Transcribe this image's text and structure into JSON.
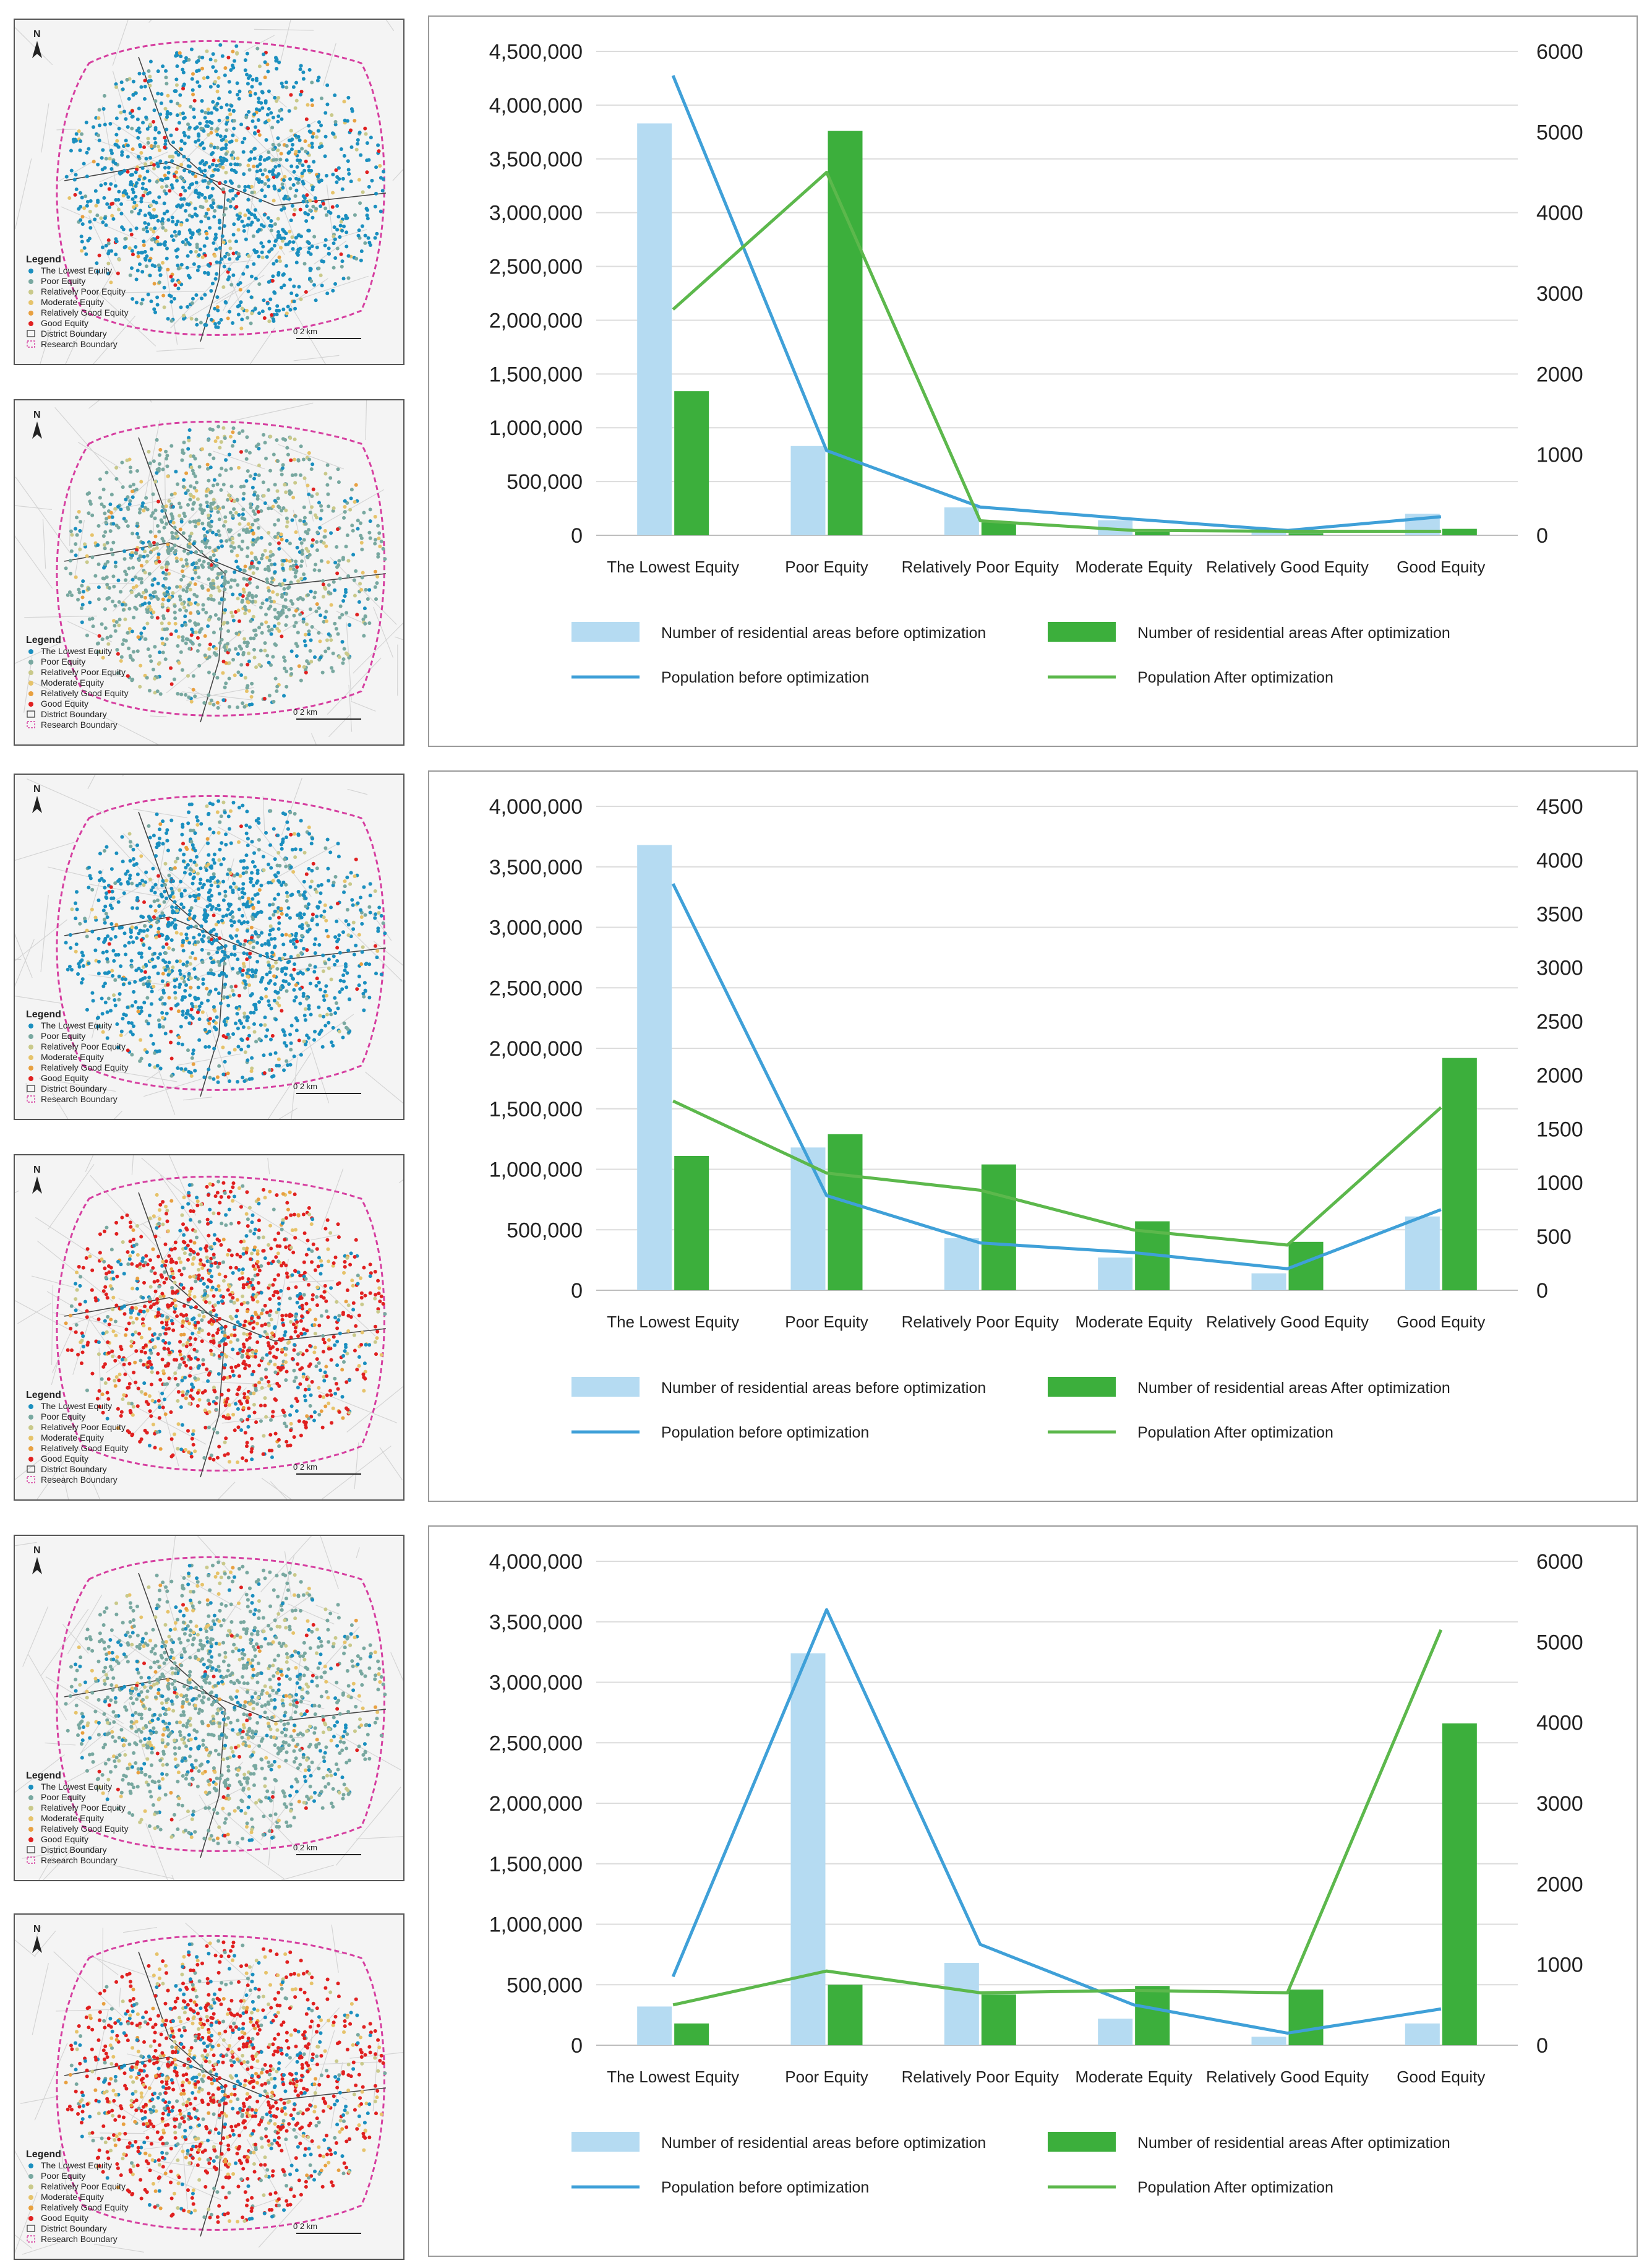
{
  "map_legend": {
    "title": "Legend",
    "items": [
      "The Lowest Equity",
      "Poor Equity",
      "Relatively Poor Equity",
      "Moderate Equity",
      "Relatively Good Equity",
      "Good Equity",
      "District Boundary",
      "Research Boundary"
    ],
    "scale": "0   2 km",
    "north": "N"
  },
  "colors": {
    "lowest": "#1a8fbf",
    "poor": "#78a8a0",
    "relpoor": "#c9c98a",
    "moderate": "#e6c36a",
    "relgood": "#e8a040",
    "good": "#e02020",
    "bar_before": "#b5dbf2",
    "bar_after": "#3caf3c",
    "line_before": "#3fa0d8",
    "line_after": "#5cb84c"
  },
  "maps": [
    {
      "dominant": "lowest"
    },
    {
      "dominant": "poor"
    },
    {
      "dominant": "lowest"
    },
    {
      "dominant": "good"
    },
    {
      "dominant": "poor"
    },
    {
      "dominant": "good"
    }
  ],
  "chart_data": [
    {
      "type": "bar",
      "categories": [
        "The Lowest Equity",
        "Poor Equity",
        "Relatively Poor Equity",
        "Moderate Equity",
        "Relatively Good Equity",
        "Good Equity"
      ],
      "y_left_ticks": [
        "0",
        "500,000",
        "1,000,000",
        "1,500,000",
        "2,000,000",
        "2,500,000",
        "3,000,000",
        "3,500,000",
        "4,000,000",
        "4,500,000"
      ],
      "y_right_ticks": [
        "0",
        "1000",
        "2000",
        "3000",
        "4000",
        "5000",
        "6000"
      ],
      "ylim_left": [
        0,
        4500000
      ],
      "ylim_right": [
        0,
        6000
      ],
      "series": [
        {
          "name": "Number of residential areas before optimization",
          "kind": "bar",
          "axis": "left",
          "values": [
            3830000,
            830000,
            260000,
            140000,
            30000,
            200000
          ]
        },
        {
          "name": "Number of residential areas After optimization",
          "kind": "bar",
          "axis": "left",
          "values": [
            1340000,
            3760000,
            120000,
            30000,
            20000,
            60000
          ]
        },
        {
          "name": "Population before optimization",
          "kind": "line",
          "axis": "right",
          "values": [
            5700,
            1050,
            350,
            200,
            60,
            230
          ]
        },
        {
          "name": "Population After optimization",
          "kind": "line",
          "axis": "right",
          "values": [
            2800,
            4500,
            180,
            60,
            50,
            50
          ]
        }
      ]
    },
    {
      "type": "bar",
      "categories": [
        "The Lowest Equity",
        "Poor Equity",
        "Relatively Poor Equity",
        "Moderate Equity",
        "Relatively Good Equity",
        "Good Equity"
      ],
      "y_left_ticks": [
        "0",
        "500,000",
        "1,000,000",
        "1,500,000",
        "2,000,000",
        "2,500,000",
        "3,000,000",
        "3,500,000",
        "4,000,000"
      ],
      "y_right_ticks": [
        "0",
        "500",
        "1000",
        "1500",
        "2000",
        "2500",
        "3000",
        "3500",
        "4000",
        "4500"
      ],
      "ylim_left": [
        0,
        4000000
      ],
      "ylim_right": [
        0,
        4500
      ],
      "series": [
        {
          "name": "Number of residential areas before optimization",
          "kind": "bar",
          "axis": "left",
          "values": [
            3680000,
            1180000,
            430000,
            270000,
            140000,
            610000
          ]
        },
        {
          "name": "Number of residential areas After optimization",
          "kind": "bar",
          "axis": "left",
          "values": [
            1110000,
            1290000,
            1040000,
            570000,
            400000,
            1920000
          ]
        },
        {
          "name": "Population before optimization",
          "kind": "line",
          "axis": "right",
          "values": [
            3780,
            880,
            440,
            350,
            200,
            750
          ]
        },
        {
          "name": "Population After optimization",
          "kind": "line",
          "axis": "right",
          "values": [
            1760,
            1090,
            930,
            560,
            420,
            1700
          ]
        }
      ]
    },
    {
      "type": "bar",
      "categories": [
        "The Lowest Equity",
        "Poor Equity",
        "Relatively Poor Equity",
        "Moderate Equity",
        "Relatively Good Equity",
        "Good Equity"
      ],
      "y_left_ticks": [
        "0",
        "500,000",
        "1,000,000",
        "1,500,000",
        "2,000,000",
        "2,500,000",
        "3,000,000",
        "3,500,000",
        "4,000,000"
      ],
      "y_right_ticks": [
        "0",
        "1000",
        "2000",
        "3000",
        "4000",
        "5000",
        "6000"
      ],
      "ylim_left": [
        0,
        4000000
      ],
      "ylim_right": [
        0,
        6000
      ],
      "series": [
        {
          "name": "Number of residential areas before optimization",
          "kind": "bar",
          "axis": "left",
          "values": [
            320000,
            3240000,
            680000,
            220000,
            70000,
            180000
          ]
        },
        {
          "name": "Number of residential areas After optimization",
          "kind": "bar",
          "axis": "left",
          "values": [
            180000,
            500000,
            420000,
            490000,
            460000,
            2660000
          ]
        },
        {
          "name": "Population before optimization",
          "kind": "line",
          "axis": "right",
          "values": [
            850,
            5400,
            1250,
            500,
            150,
            450
          ]
        },
        {
          "name": "Population After optimization",
          "kind": "line",
          "axis": "right",
          "values": [
            500,
            920,
            650,
            680,
            650,
            5150
          ]
        }
      ]
    }
  ]
}
